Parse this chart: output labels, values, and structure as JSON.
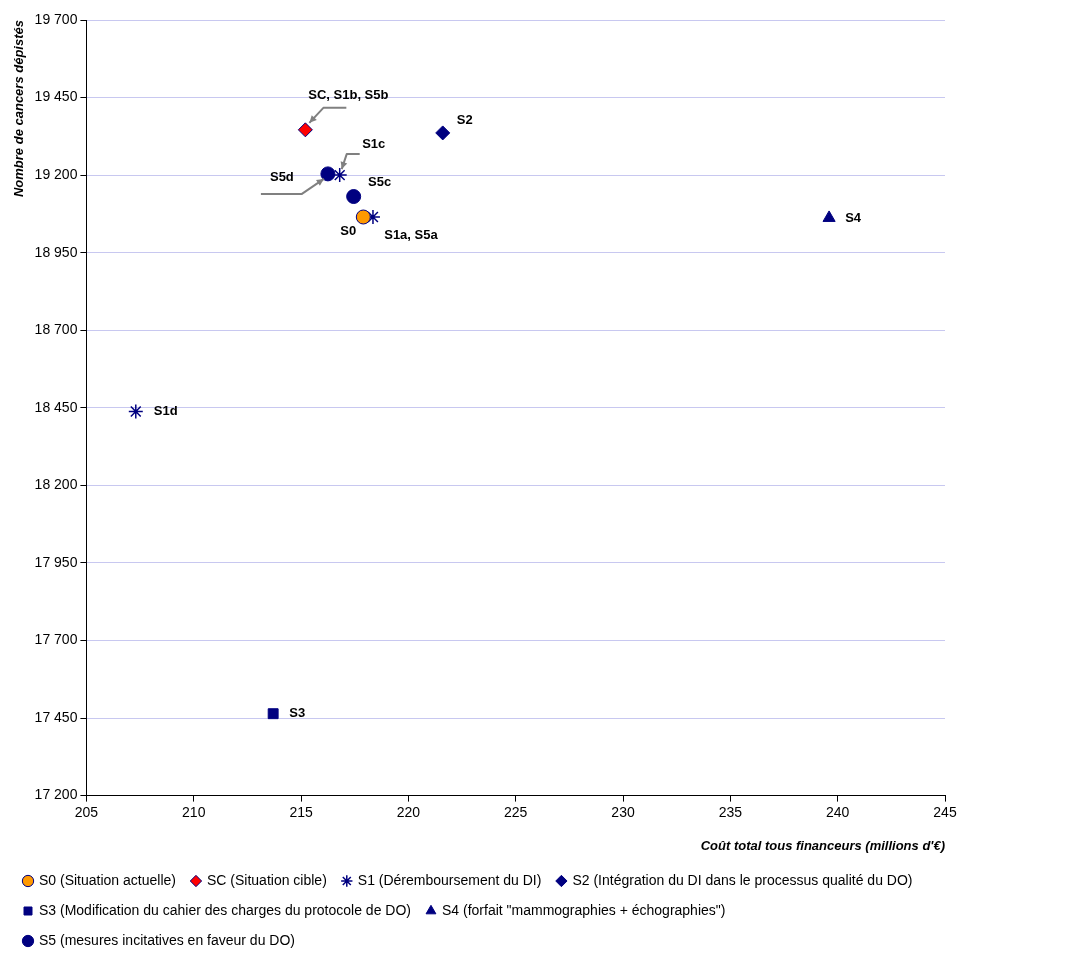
{
  "chart_data": {
    "type": "scatter",
    "xlabel": "Coût total tous financeurs (millions d'€)",
    "ylabel": "Nombre de cancers dépistés",
    "xlim": [
      205,
      245
    ],
    "xticks": [
      205,
      210,
      215,
      220,
      225,
      230,
      235,
      240,
      245
    ],
    "ylim": [
      17200,
      19700
    ],
    "yticks": [
      {
        "value": 17200,
        "label": "17 200"
      },
      {
        "value": 17450,
        "label": "17 450"
      },
      {
        "value": 17700,
        "label": "17 700"
      },
      {
        "value": 17950,
        "label": "17 950"
      },
      {
        "value": 18200,
        "label": "18 200"
      },
      {
        "value": 18450,
        "label": "18 450"
      },
      {
        "value": 18700,
        "label": "18 700"
      },
      {
        "value": 18950,
        "label": "18 950"
      },
      {
        "value": 19200,
        "label": "19 200"
      },
      {
        "value": 19450,
        "label": "19 450"
      },
      {
        "value": 19700,
        "label": "19 700"
      }
    ],
    "grid": "y",
    "legend": "bottom",
    "series": [
      {
        "name": "S0 (Situation actuelle)",
        "color": "#ff9900",
        "marker": "circle",
        "x": [
          217.9
        ],
        "values": [
          19065
        ]
      },
      {
        "name": "SC (Situation cible)",
        "color": "#ff0000",
        "marker": "diamond",
        "x": [
          215.2
        ],
        "values": [
          19346
        ]
      },
      {
        "name": "S1 (Déremboursement du DI)",
        "color": "#000080",
        "marker": "cross",
        "x": [
          218.35,
          216.8,
          207.3
        ],
        "values": [
          19065,
          19200,
          18438
        ]
      },
      {
        "name": "S2 (Intégration du DI dans le processus qualité du DO)",
        "color": "#000080",
        "marker": "diamond",
        "x": [
          221.6
        ],
        "values": [
          19336
        ]
      },
      {
        "name": "S3 (Modification du cahier des charges du protocole de DO)",
        "color": "#000080",
        "marker": "square",
        "x": [
          213.7
        ],
        "values": [
          17464
        ]
      },
      {
        "name": "S4 (forfait \"mammographies + échographies\")",
        "color": "#000080",
        "marker": "triangle",
        "x": [
          239.6
        ],
        "values": [
          19062
        ]
      },
      {
        "name": "S5 (mesures incitatives en faveur du DO)",
        "color": "#000080",
        "marker": "circle",
        "x": [
          216.25,
          217.45
        ],
        "values": [
          19204,
          19131
        ]
      }
    ],
    "annotations": [
      {
        "text": "SC, S1b, S5b",
        "x": 215.2,
        "y": 19346
      },
      {
        "text": "S2",
        "x": 221.6,
        "y": 19336
      },
      {
        "text": "S1c",
        "x": 216.8,
        "y": 19200
      },
      {
        "text": "S5d",
        "x": 216.25,
        "y": 19204
      },
      {
        "text": "S5c",
        "x": 217.45,
        "y": 19131
      },
      {
        "text": "S0",
        "x": 217.9,
        "y": 19065
      },
      {
        "text": "S1a, S5a",
        "x": 218.35,
        "y": 19065
      },
      {
        "text": "S4",
        "x": 239.6,
        "y": 19062
      },
      {
        "text": "S1d",
        "x": 207.3,
        "y": 18438
      },
      {
        "text": "S3",
        "x": 213.7,
        "y": 17464
      }
    ]
  }
}
